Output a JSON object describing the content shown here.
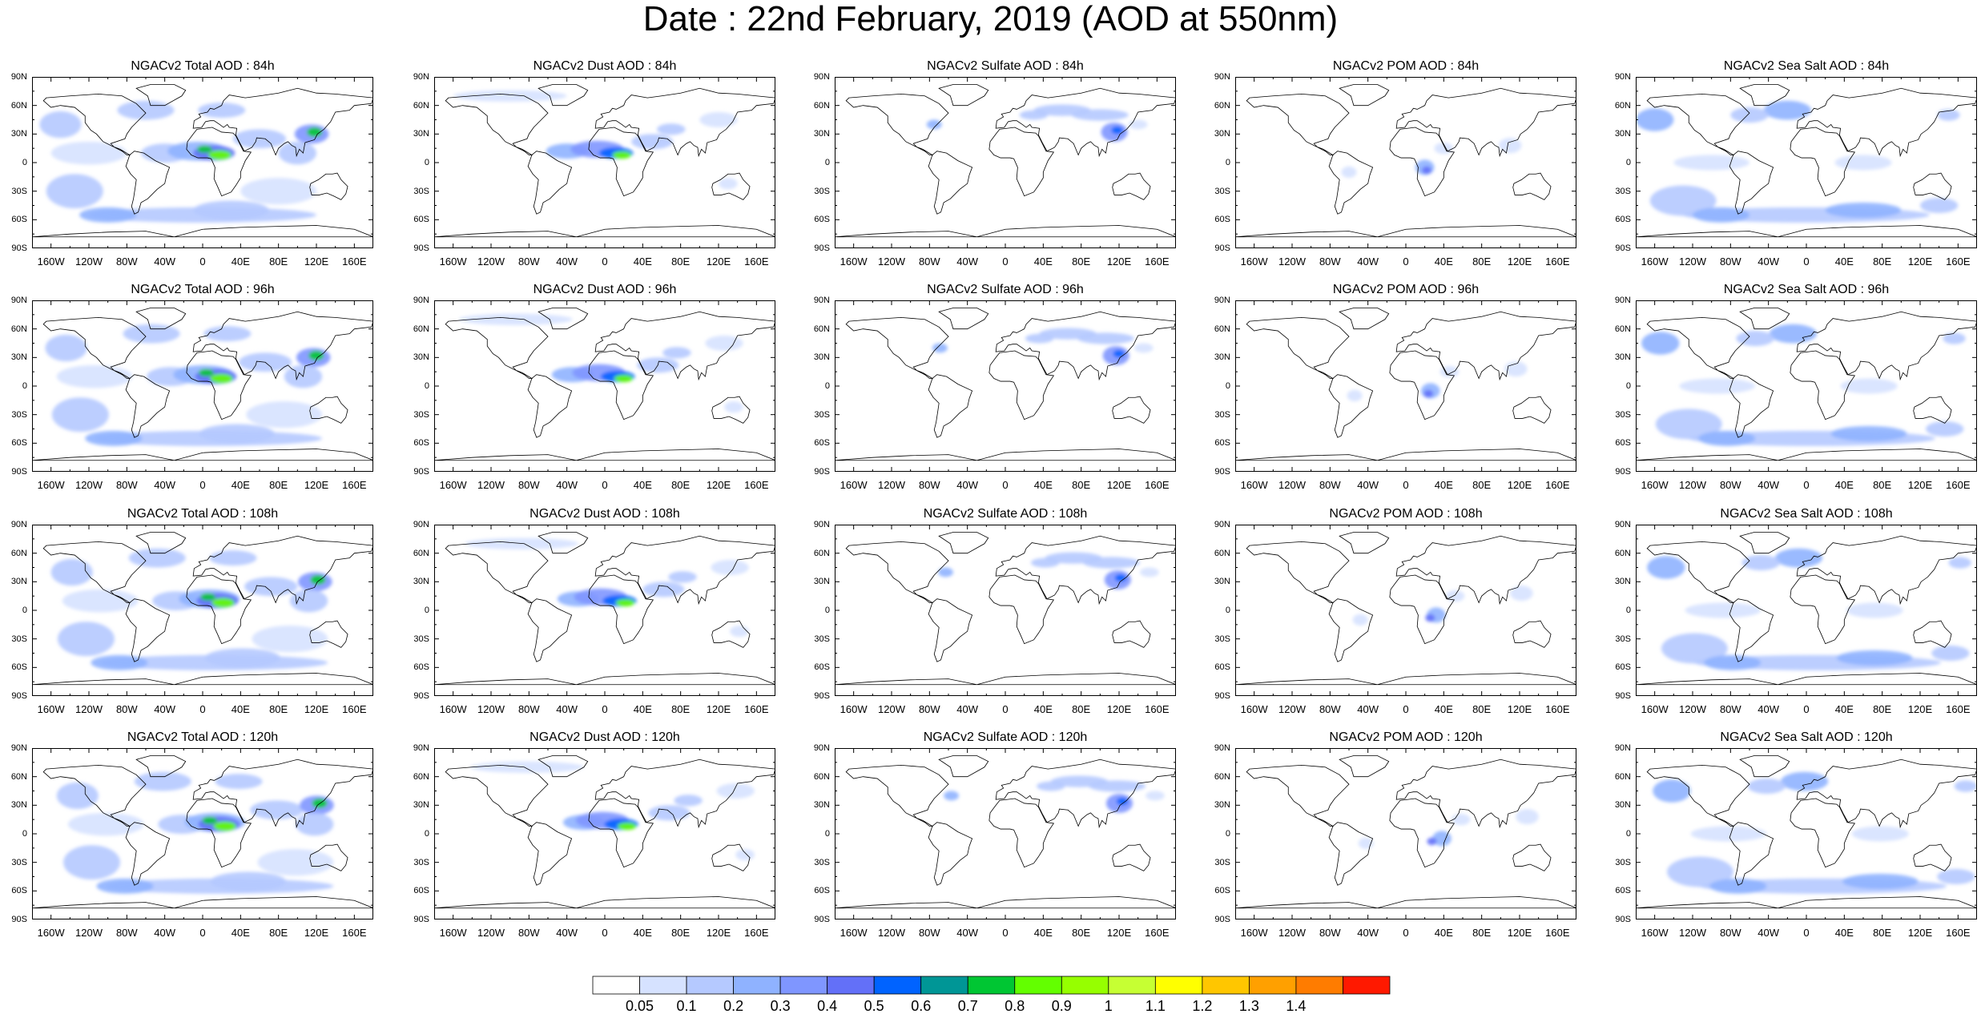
{
  "title": "Date : 22nd February, 2019 (AOD at 550nm)",
  "rows": [
    [
      "NGACv2 Total AOD : 84h",
      "NGACv2 Dust AOD : 84h",
      "NGACv2 Sulfate AOD : 84h",
      "NGACv2 POM AOD : 84h",
      "NGACv2 Sea Salt AOD : 84h"
    ],
    [
      "NGACv2 Total AOD : 96h",
      "NGACv2 Dust AOD : 96h",
      "NGACv2 Sulfate AOD : 96h",
      "NGACv2 POM AOD : 96h",
      "NGACv2 Sea Salt AOD : 96h"
    ],
    [
      "NGACv2 Total AOD : 108h",
      "NGACv2 Dust AOD : 108h",
      "NGACv2 Sulfate AOD : 108h",
      "NGACv2 POM AOD : 108h",
      "NGACv2 Sea Salt AOD : 108h"
    ],
    [
      "NGACv2 Total AOD : 120h",
      "NGACv2 Dust AOD : 120h",
      "NGACv2 Sulfate AOD : 120h",
      "NGACv2 POM AOD : 120h",
      "NGACv2 Sea Salt  AOD : 120h"
    ]
  ],
  "lat_labels": [
    "90N",
    "60N",
    "30N",
    "0",
    "30S",
    "60S",
    "90S"
  ],
  "lon_labels": [
    "160W",
    "120W",
    "80W",
    "40W",
    "0",
    "40E",
    "80E",
    "120E",
    "160E"
  ],
  "colorbar": {
    "labels": [
      "0.05",
      "0.1",
      "0.2",
      "0.3",
      "0.4",
      "0.5",
      "0.6",
      "0.7",
      "0.8",
      "0.9",
      "1",
      "1.1",
      "1.2",
      "1.3",
      "1.4"
    ],
    "colors": [
      "#ffffff",
      "#d6e2ff",
      "#b5c9ff",
      "#8fb2ff",
      "#7f96ff",
      "#6370f8",
      "#0063ff",
      "#009696",
      "#00c633",
      "#63ff00",
      "#96ff00",
      "#c6ff33",
      "#ffff00",
      "#ffc600",
      "#ffa000",
      "#ff7c00",
      "#ff1900"
    ]
  }
}
